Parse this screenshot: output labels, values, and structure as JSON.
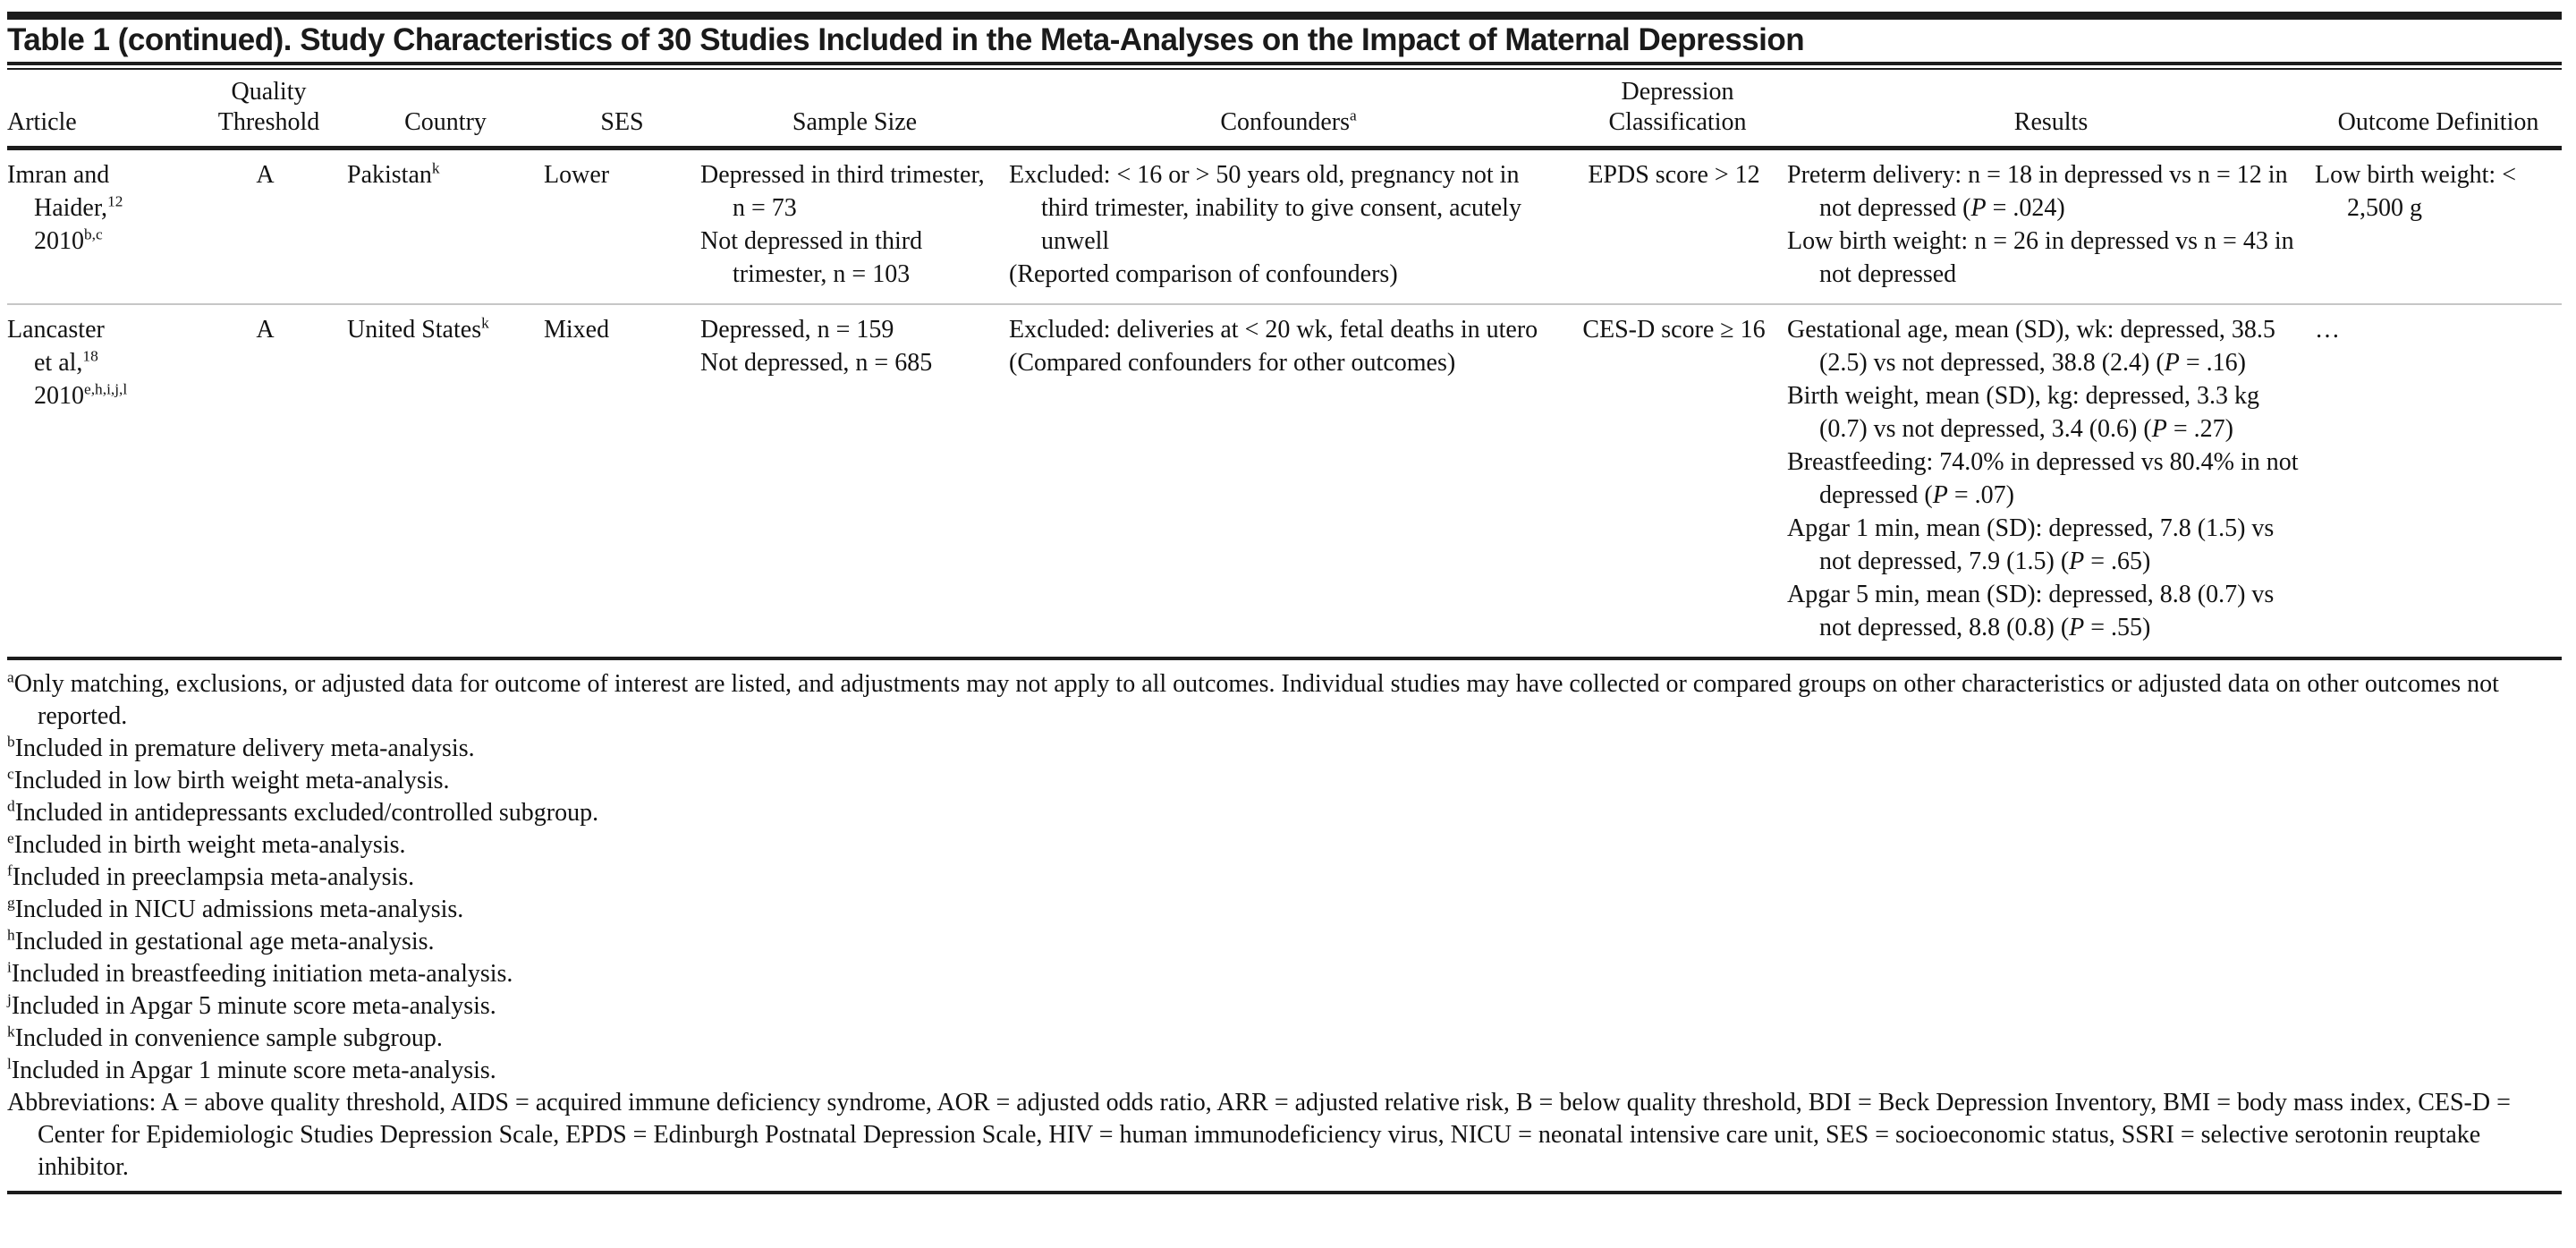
{
  "title": "Table 1 (continued). Study Characteristics of 30 Studies Included in the Meta-Analyses on the Impact of Maternal Depression",
  "table": {
    "headers": [
      "Article",
      "Quality Threshold",
      "Country",
      "SES",
      "Sample Size",
      "Confounders^{a}",
      "Depression Classification",
      "Results",
      "Outcome Definition"
    ],
    "rows": [
      {
        "article": [
          "Imran and",
          "Haider,^{12}",
          "2010^{b,c}"
        ],
        "quality": "A",
        "country": "Pakistan^{k}",
        "ses": "Lower",
        "sample": [
          "Depressed in third trimester, n = 73",
          "Not depressed in third trimester, n = 103"
        ],
        "confounders": [
          "Excluded: < 16 or > 50 years old, pregnancy not in third trimester, inability to give consent, acutely unwell",
          "(Reported comparison of confounders)"
        ],
        "classification": "EPDS score > 12",
        "results": [
          "Preterm delivery: n = 18 in depressed vs n = 12 in not depressed (*P* = .024)",
          "Low birth weight: n = 26 in depressed vs n = 43 in not depressed"
        ],
        "outcome": "Low birth weight: < 2,500 g"
      },
      {
        "article": [
          "Lancaster",
          "et al,^{18}",
          "2010^{e,h,i,j,l}"
        ],
        "quality": "A",
        "country": "United States^{k}",
        "ses": "Mixed",
        "sample": [
          "Depressed, n = 159",
          "Not depressed, n = 685"
        ],
        "confounders": [
          "Excluded: deliveries at < 20 wk, fetal deaths in utero",
          "(Compared confounders for other outcomes)"
        ],
        "classification": "CES-D score ≥ 16",
        "results": [
          "Gestational age, mean (SD), wk: depressed, 38.5 (2.5) vs not depressed, 38.8 (2.4) (*P* = .16)",
          "Birth weight, mean (SD), kg: depressed, 3.3 kg (0.7) vs not depressed, 3.4 (0.6) (*P* = .27)",
          "Breastfeeding: 74.0% in depressed vs 80.4% in not depressed (*P* = .07)",
          "Apgar 1 min, mean (SD): depressed, 7.8 (1.5) vs not depressed, 7.9 (1.5) (*P* = .65)",
          "Apgar 5 min, mean (SD): depressed, 8.8 (0.7) vs not depressed, 8.8 (0.8) (*P* = .55)"
        ],
        "outcome": "…"
      }
    ]
  },
  "footnotes": [
    "^{a}Only matching, exclusions, or adjusted data for outcome of interest are listed, and adjustments may not apply to all outcomes. Individual studies may have collected or compared groups on other characteristics or adjusted data on other outcomes not reported.",
    "^{b}Included in premature delivery meta-analysis.",
    "^{c}Included in low birth weight meta-analysis.",
    "^{d}Included in antidepressants excluded/controlled subgroup.",
    "^{e}Included in birth weight meta-analysis.",
    "^{f}Included in preeclampsia meta-analysis.",
    "^{g}Included in NICU admissions meta-analysis.",
    "^{h}Included in gestational age meta-analysis.",
    "^{i}Included in breastfeeding initiation meta-analysis.",
    "^{j}Included in Apgar 5 minute score meta-analysis.",
    "^{k}Included in convenience sample subgroup.",
    "^{l}Included in Apgar 1 minute score meta-analysis.",
    "Abbreviations: A = above quality threshold, AIDS = acquired immune deficiency syndrome, AOR = adjusted odds ratio, ARR = adjusted relative risk, B = below quality threshold, BDI = Beck Depression Inventory, BMI = body mass index, CES-D = Center for Epidemiologic Studies Depression Scale, EPDS = Edinburgh Postnatal Depression Scale, HIV = human immunodeficiency virus, NICU = neonatal intensive care unit, SES = socioeconomic status, SSRI = selective serotonin reuptake inhibitor."
  ],
  "colors": {
    "rule_dark": "#1c1c1c",
    "rule_light": "#c6c6c6",
    "text": "#121212",
    "background": "#ffffff"
  }
}
